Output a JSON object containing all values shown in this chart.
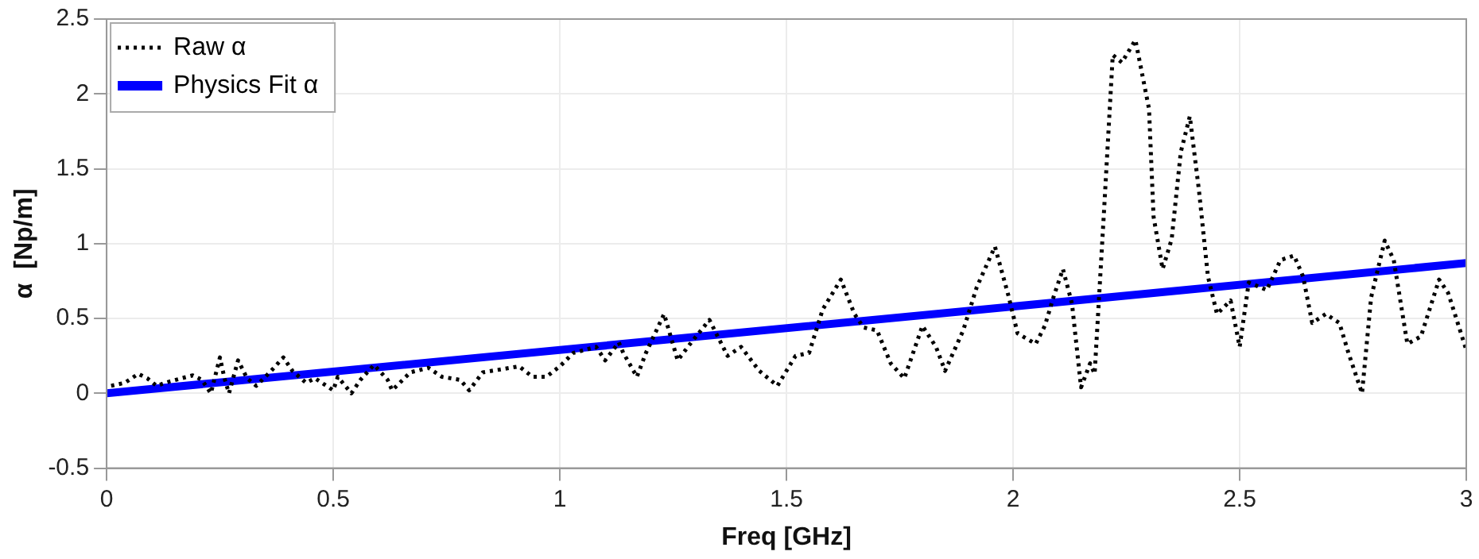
{
  "chart_data": {
    "type": "line",
    "xlabel": "Freq [GHz]",
    "ylabel": "α  [Np/m]",
    "xlim": [
      0,
      3
    ],
    "xticks": [
      0,
      0.5,
      1,
      1.5,
      2,
      2.5,
      3
    ],
    "ylim": [
      -0.5,
      2.5
    ],
    "yticks": [
      -0.5,
      0,
      0.5,
      1,
      1.5,
      2,
      2.5
    ],
    "grid": true,
    "legend": "top left",
    "marker": "none",
    "series": [
      {
        "name": "Raw α",
        "color": "#000000",
        "line_style": "dotted",
        "x": [
          0.01,
          0.04,
          0.07,
          0.09,
          0.11,
          0.14,
          0.19,
          0.21,
          0.23,
          0.25,
          0.26,
          0.27,
          0.29,
          0.31,
          0.33,
          0.36,
          0.39,
          0.41,
          0.44,
          0.46,
          0.5,
          0.51,
          0.54,
          0.56,
          0.59,
          0.62,
          0.63,
          0.67,
          0.71,
          0.74,
          0.78,
          0.8,
          0.83,
          0.87,
          0.91,
          0.94,
          0.97,
          1.0,
          1.03,
          1.08,
          1.1,
          1.13,
          1.14,
          1.17,
          1.19,
          1.23,
          1.26,
          1.29,
          1.33,
          1.37,
          1.4,
          1.44,
          1.48,
          1.52,
          1.55,
          1.58,
          1.62,
          1.65,
          1.67,
          1.7,
          1.73,
          1.76,
          1.8,
          1.83,
          1.85,
          1.89,
          1.92,
          1.96,
          1.99,
          2.01,
          2.05,
          2.07,
          2.09,
          2.11,
          2.13,
          2.15,
          2.17,
          2.18,
          2.2,
          2.22,
          2.24,
          2.27,
          2.3,
          2.31,
          2.33,
          2.35,
          2.37,
          2.39,
          2.41,
          2.43,
          2.45,
          2.48,
          2.5,
          2.52,
          2.56,
          2.59,
          2.62,
          2.64,
          2.66,
          2.69,
          2.72,
          2.74,
          2.77,
          2.79,
          2.82,
          2.84,
          2.87,
          2.9,
          2.94,
          2.96,
          3.0
        ],
        "values": [
          0.05,
          0.07,
          0.13,
          0.1,
          0.05,
          0.08,
          0.12,
          0.09,
          0.0,
          0.24,
          0.1,
          0.0,
          0.22,
          0.1,
          0.05,
          0.14,
          0.24,
          0.15,
          0.07,
          0.1,
          0.02,
          0.11,
          0.0,
          0.09,
          0.19,
          0.09,
          0.02,
          0.14,
          0.17,
          0.11,
          0.09,
          0.02,
          0.14,
          0.16,
          0.18,
          0.11,
          0.11,
          0.18,
          0.27,
          0.31,
          0.22,
          0.34,
          0.27,
          0.11,
          0.27,
          0.53,
          0.22,
          0.34,
          0.49,
          0.25,
          0.31,
          0.15,
          0.05,
          0.25,
          0.27,
          0.56,
          0.76,
          0.53,
          0.44,
          0.42,
          0.2,
          0.1,
          0.45,
          0.31,
          0.15,
          0.42,
          0.71,
          0.98,
          0.65,
          0.4,
          0.33,
          0.45,
          0.65,
          0.83,
          0.6,
          0.04,
          0.2,
          0.13,
          1.18,
          2.26,
          2.21,
          2.36,
          1.9,
          1.18,
          0.83,
          1.03,
          1.61,
          1.85,
          1.36,
          0.78,
          0.53,
          0.62,
          0.31,
          0.74,
          0.69,
          0.89,
          0.92,
          0.78,
          0.47,
          0.53,
          0.47,
          0.27,
          0.0,
          0.64,
          1.02,
          0.89,
          0.33,
          0.38,
          0.76,
          0.67,
          0.29
        ]
      },
      {
        "name": "Physics Fit α",
        "color": "#0000ff",
        "line_style": "solid",
        "x": [
          0,
          3
        ],
        "values": [
          0,
          0.87
        ]
      }
    ]
  }
}
